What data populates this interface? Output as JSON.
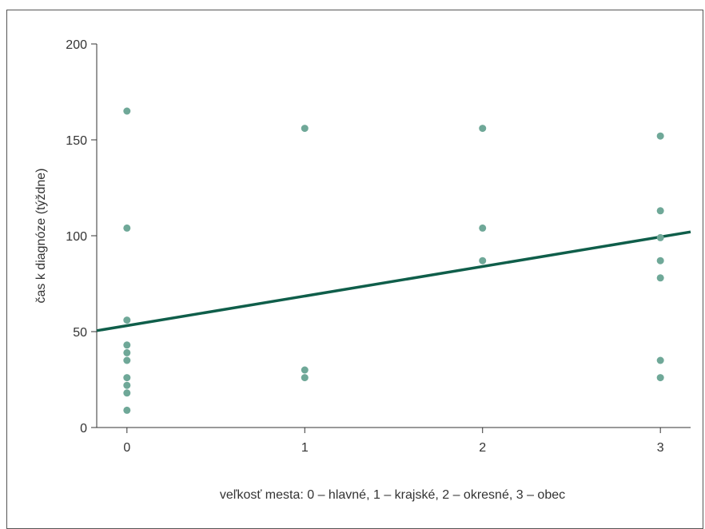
{
  "chart_data": {
    "type": "scatter",
    "title": "",
    "xlabel": "veľkosť mesta: 0 – hlavné, 1 – krajské, 2 – okresné, 3 – obec",
    "ylabel": "čas k diagnóze (týždne)",
    "xlim": [
      -0.17,
      3.17
    ],
    "ylim": [
      0,
      200
    ],
    "x_ticks": [
      0,
      1,
      2,
      3
    ],
    "y_ticks": [
      0,
      50,
      100,
      150,
      200
    ],
    "grid": false,
    "series": [
      {
        "points": [
          {
            "x": 0,
            "y": 165
          },
          {
            "x": 0,
            "y": 104
          },
          {
            "x": 0,
            "y": 56
          },
          {
            "x": 0,
            "y": 43
          },
          {
            "x": 0,
            "y": 39
          },
          {
            "x": 0,
            "y": 35
          },
          {
            "x": 0,
            "y": 26
          },
          {
            "x": 0,
            "y": 22
          },
          {
            "x": 0,
            "y": 18
          },
          {
            "x": 0,
            "y": 9
          },
          {
            "x": 1,
            "y": 156
          },
          {
            "x": 1,
            "y": 30
          },
          {
            "x": 1,
            "y": 26
          },
          {
            "x": 2,
            "y": 156
          },
          {
            "x": 2,
            "y": 104
          },
          {
            "x": 2,
            "y": 87
          },
          {
            "x": 3,
            "y": 152
          },
          {
            "x": 3,
            "y": 113
          },
          {
            "x": 3,
            "y": 99
          },
          {
            "x": 3,
            "y": 87
          },
          {
            "x": 3,
            "y": 78
          },
          {
            "x": 3,
            "y": 35
          },
          {
            "x": 3,
            "y": 26
          }
        ]
      }
    ],
    "trendline": {
      "x": [
        -0.17,
        3.17
      ],
      "y": [
        50.5,
        102
      ]
    },
    "colors": {
      "points": "#6fa898",
      "trendline": "#0f5e4a",
      "axis": "#333333"
    }
  }
}
